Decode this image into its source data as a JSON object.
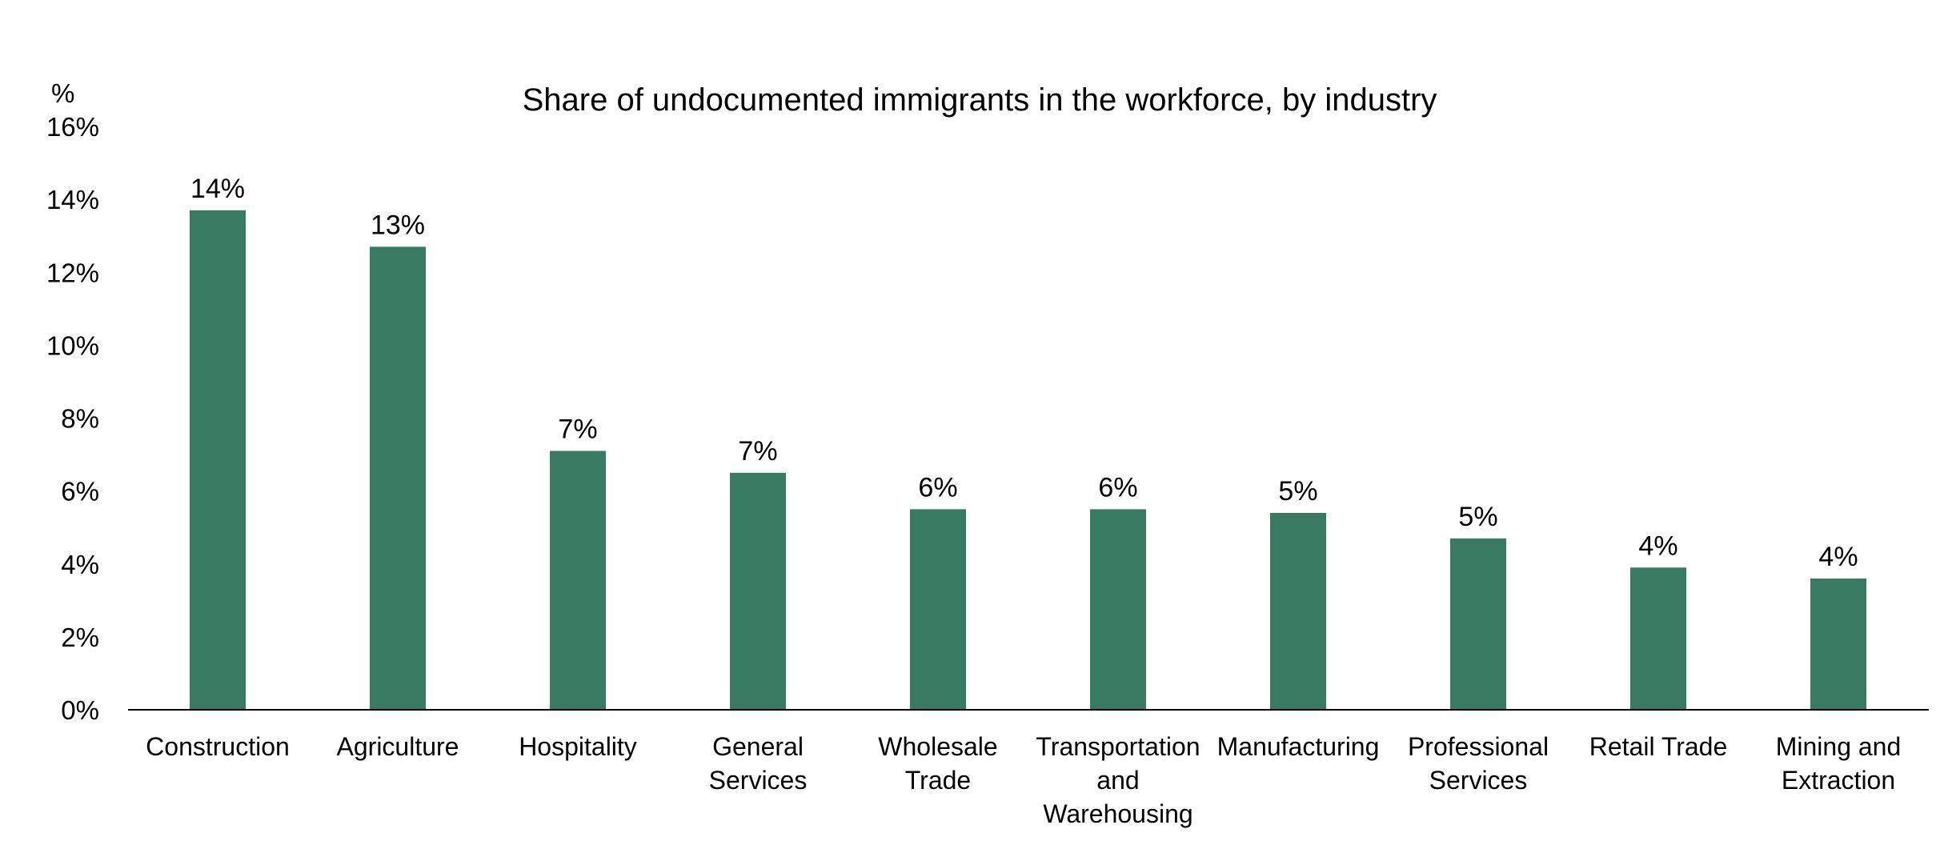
{
  "chart_data": {
    "type": "bar",
    "title": "Share of undocumented immigrants in the workforce, by industry",
    "ylabel": "%",
    "xlabel": "",
    "ylim": [
      0,
      16
    ],
    "yticks": [
      0,
      2,
      4,
      6,
      8,
      10,
      12,
      14,
      16
    ],
    "ytick_labels": [
      "0%",
      "2%",
      "4%",
      "6%",
      "8%",
      "10%",
      "12%",
      "14%",
      "16%"
    ],
    "grid": false,
    "legend": "none",
    "categories": [
      [
        "Construction"
      ],
      [
        "Agriculture"
      ],
      [
        "Hospitality"
      ],
      [
        "General",
        "Services"
      ],
      [
        "Wholesale",
        "Trade"
      ],
      [
        "Transportation",
        "and",
        "Warehousing"
      ],
      [
        "Manufacturing"
      ],
      [
        "Professional",
        "Services"
      ],
      [
        "Retail Trade"
      ],
      [
        "Mining and",
        "Extraction"
      ]
    ],
    "values": [
      13.7,
      12.7,
      7.1,
      6.5,
      5.5,
      5.5,
      5.4,
      4.7,
      3.9,
      3.6
    ],
    "data_labels": [
      "14%",
      "13%",
      "7%",
      "7%",
      "6%",
      "6%",
      "5%",
      "5%",
      "4%",
      "4%"
    ],
    "bar_color": "#387a62",
    "axis_color": "#000000"
  }
}
